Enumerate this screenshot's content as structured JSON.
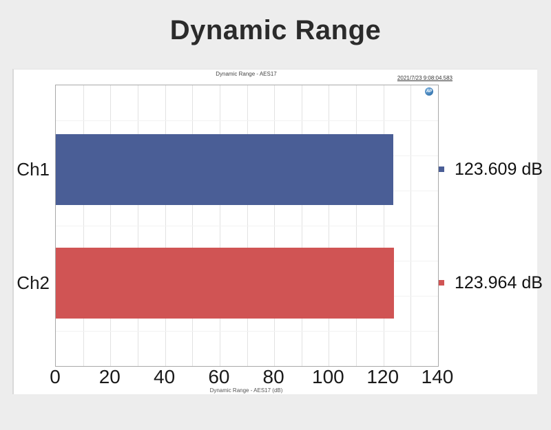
{
  "page": {
    "title": "Dynamic Range"
  },
  "chart_data": {
    "type": "bar",
    "orientation": "horizontal",
    "title": "Dynamic Range - AES17",
    "timestamp": "2021/7/23 9:08:04.583",
    "xlabel": "Dynamic Range - AES17 (dB)",
    "categories": [
      "Ch1",
      "Ch2"
    ],
    "values": [
      123.609,
      123.964
    ],
    "value_labels": [
      "123.609 dB",
      "123.964 dB"
    ],
    "bar_colors": [
      "#4a5e96",
      "#d05454"
    ],
    "xlim": [
      0,
      140
    ],
    "x_ticks": [
      "0",
      "20",
      "40",
      "60",
      "80",
      "100",
      "120",
      "140"
    ],
    "minor_grid_step": 10,
    "grid": true,
    "legend_position": "right-of-bars",
    "logo_text": "AP"
  }
}
